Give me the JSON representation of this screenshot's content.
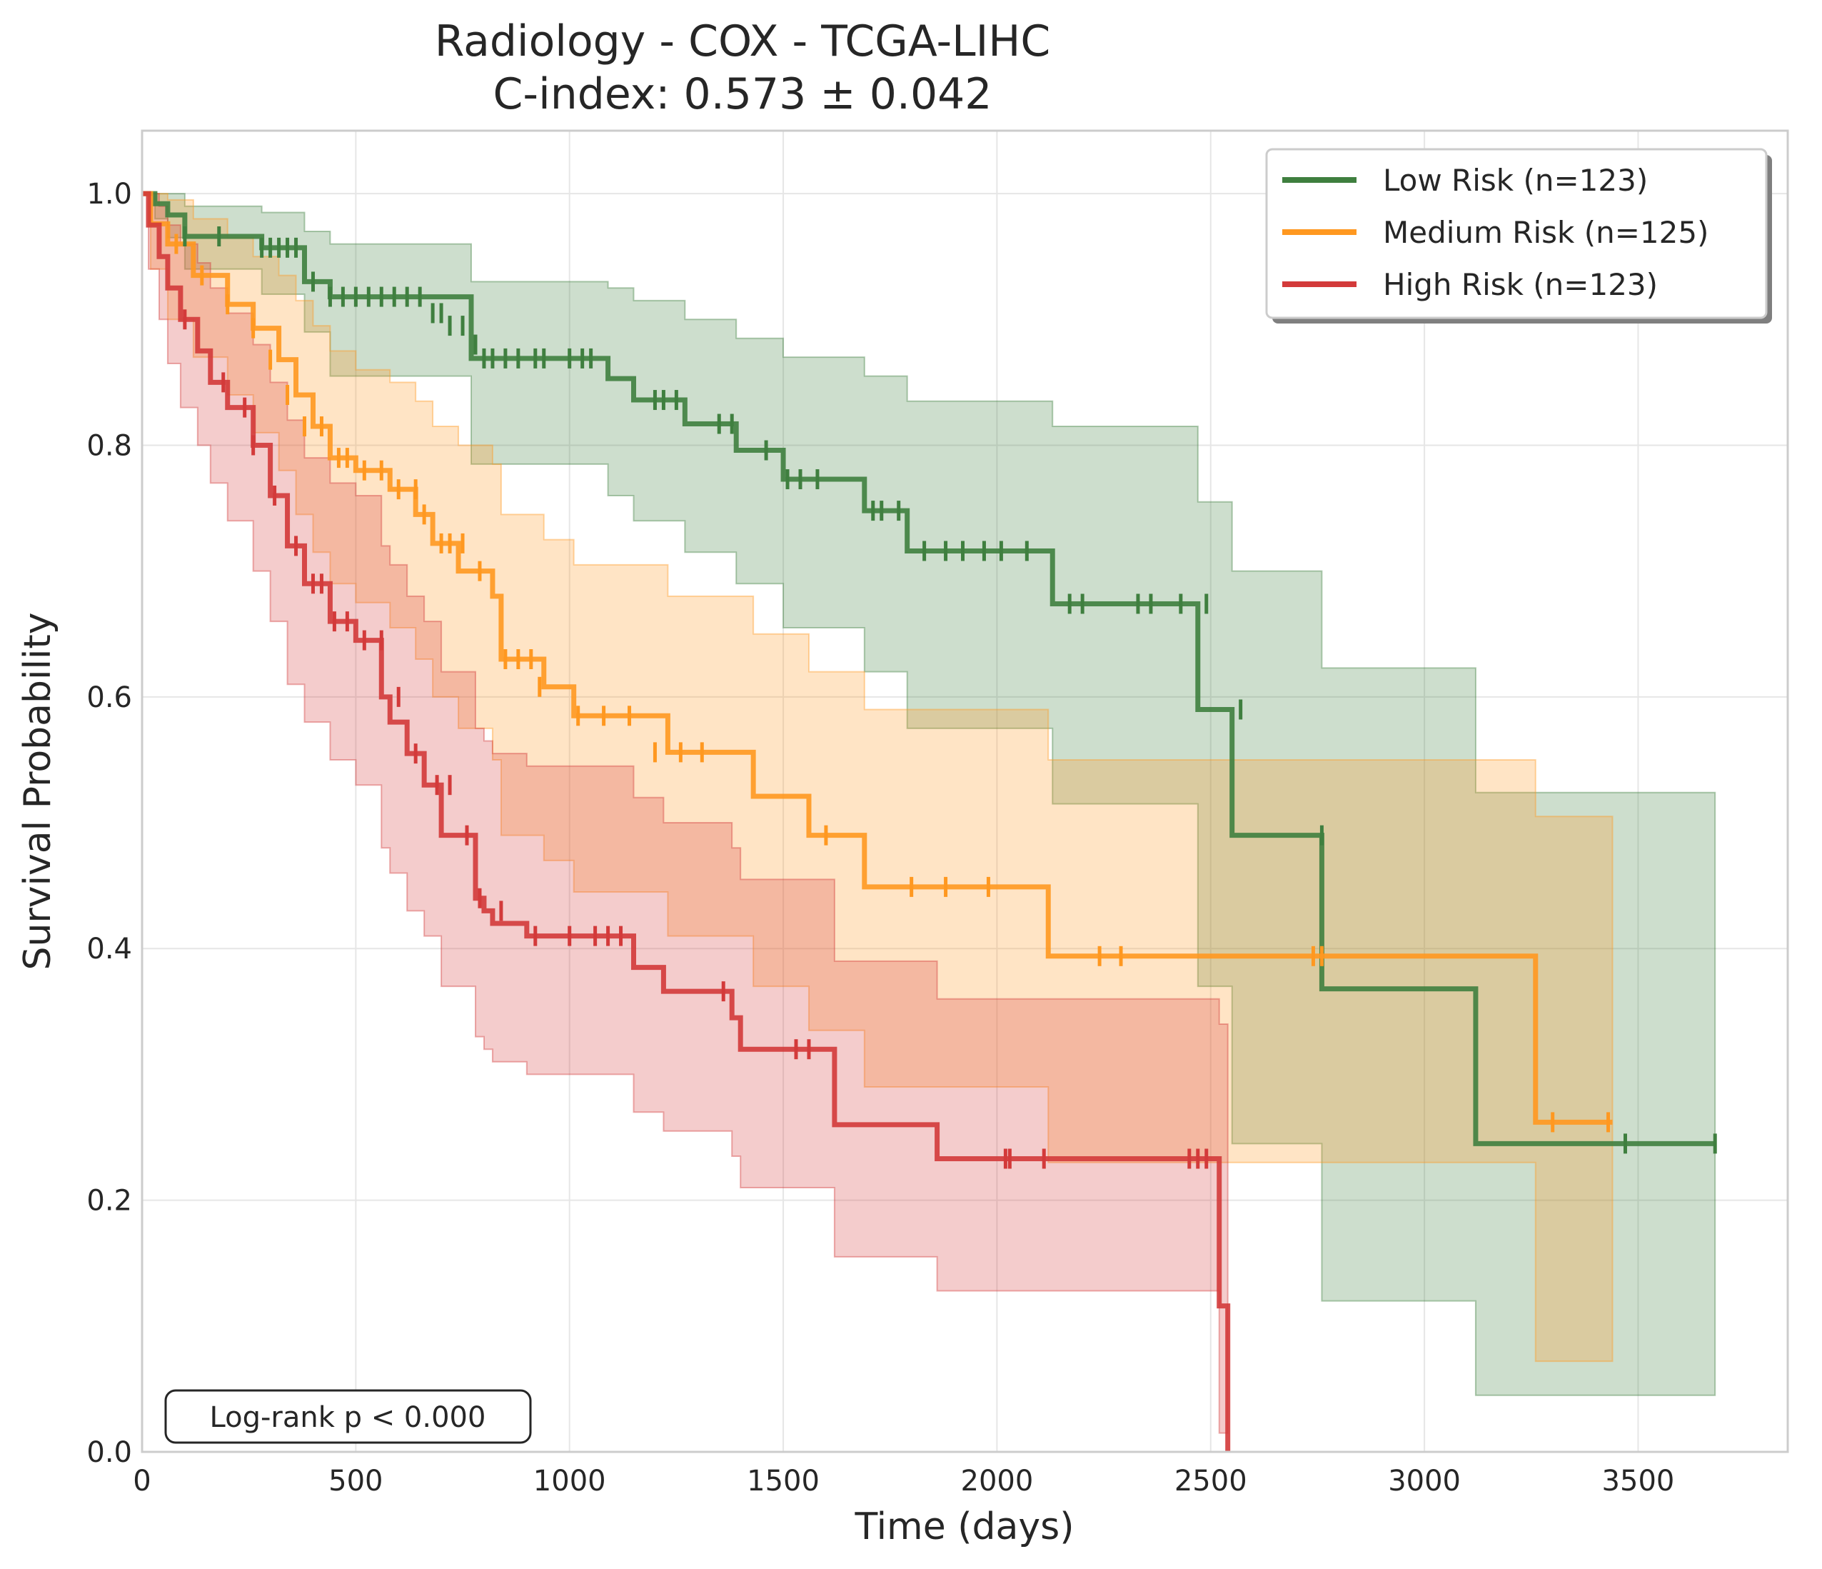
{
  "chart_data": {
    "type": "line",
    "title": "Radiology - COX - TCGA-LIHC",
    "subtitle": "C-index: 0.573 ± 0.042",
    "xlabel": "Time (days)",
    "ylabel": "Survival Probability",
    "xlim": [
      0,
      3850
    ],
    "ylim": [
      0,
      1.05
    ],
    "xticks": [
      0,
      500,
      1000,
      1500,
      2000,
      2500,
      3000,
      3500
    ],
    "xtick_labels": [
      "0",
      "500",
      "1000",
      "1500",
      "2000",
      "2500",
      "3000",
      "3500"
    ],
    "yticks": [
      0,
      0.2,
      0.4,
      0.6,
      0.8,
      1.0
    ],
    "ytick_labels": [
      "0.0",
      "0.2",
      "0.4",
      "0.6",
      "0.8",
      "1.0"
    ],
    "grid": true,
    "legend_position": "top-right",
    "annotation": "Log-rank p < 0.000",
    "series": [
      {
        "name": "Low Risk (n=123)",
        "color": "#3f7f3f",
        "x": [
          0,
          30,
          60,
          100,
          280,
          380,
          440,
          770,
          1090,
          1150,
          1270,
          1390,
          1500,
          1690,
          1790,
          2130,
          2470,
          2550,
          2760,
          3120,
          3680
        ],
        "y": [
          1.0,
          0.992,
          0.983,
          0.966,
          0.957,
          0.93,
          0.918,
          0.869,
          0.853,
          0.836,
          0.817,
          0.796,
          0.773,
          0.748,
          0.716,
          0.674,
          0.59,
          0.49,
          0.368,
          0.245,
          0.245
        ],
        "ci_lower": [
          1.0,
          0.98,
          0.965,
          0.94,
          0.92,
          0.89,
          0.855,
          0.785,
          0.76,
          0.74,
          0.715,
          0.69,
          0.655,
          0.62,
          0.575,
          0.515,
          0.37,
          0.245,
          0.12,
          0.045,
          0.045
        ],
        "ci_upper": [
          1.0,
          1.0,
          1.0,
          0.99,
          0.985,
          0.97,
          0.96,
          0.93,
          0.925,
          0.915,
          0.9,
          0.885,
          0.87,
          0.855,
          0.835,
          0.815,
          0.755,
          0.7,
          0.623,
          0.524,
          0.524
        ],
        "censor_x": [
          100,
          180,
          280,
          300,
          320,
          340,
          360,
          400,
          440,
          470,
          500,
          530,
          560,
          590,
          620,
          650,
          680,
          700,
          720,
          750,
          780,
          800,
          820,
          850,
          880,
          920,
          940,
          1000,
          1030,
          1050,
          1200,
          1220,
          1250,
          1350,
          1380,
          1460,
          1510,
          1540,
          1580,
          1710,
          1730,
          1770,
          1830,
          1880,
          1920,
          1970,
          2010,
          2070,
          2170,
          2200,
          2330,
          2360,
          2430,
          2490,
          2570,
          2760,
          3470,
          3680
        ],
        "censor_y": [
          0.966,
          0.966,
          0.957,
          0.957,
          0.957,
          0.957,
          0.957,
          0.93,
          0.918,
          0.918,
          0.918,
          0.918,
          0.918,
          0.918,
          0.918,
          0.918,
          0.905,
          0.905,
          0.895,
          0.895,
          0.88,
          0.869,
          0.869,
          0.869,
          0.869,
          0.869,
          0.869,
          0.869,
          0.869,
          0.869,
          0.836,
          0.836,
          0.836,
          0.817,
          0.817,
          0.796,
          0.773,
          0.773,
          0.773,
          0.748,
          0.748,
          0.748,
          0.716,
          0.716,
          0.716,
          0.716,
          0.716,
          0.716,
          0.674,
          0.674,
          0.674,
          0.674,
          0.674,
          0.674,
          0.59,
          0.49,
          0.245,
          0.245
        ]
      },
      {
        "name": "Medium Risk (n=125)",
        "color": "#ff9820",
        "x": [
          0,
          20,
          60,
          120,
          200,
          260,
          320,
          360,
          400,
          440,
          500,
          580,
          640,
          680,
          740,
          820,
          840,
          940,
          1010,
          1230,
          1430,
          1560,
          1690,
          2120,
          3260,
          3440
        ],
        "y": [
          1.0,
          0.976,
          0.96,
          0.935,
          0.912,
          0.893,
          0.868,
          0.84,
          0.815,
          0.79,
          0.78,
          0.765,
          0.745,
          0.722,
          0.7,
          0.68,
          0.63,
          0.608,
          0.585,
          0.556,
          0.521,
          0.49,
          0.449,
          0.394,
          0.262,
          0.262
        ],
        "ci_lower": [
          1.0,
          0.94,
          0.9,
          0.87,
          0.84,
          0.81,
          0.78,
          0.745,
          0.715,
          0.69,
          0.675,
          0.655,
          0.63,
          0.6,
          0.575,
          0.55,
          0.49,
          0.47,
          0.445,
          0.41,
          0.37,
          0.335,
          0.29,
          0.23,
          0.072,
          0.072
        ],
        "ci_upper": [
          1.0,
          1.0,
          0.995,
          0.98,
          0.965,
          0.95,
          0.935,
          0.915,
          0.895,
          0.875,
          0.86,
          0.85,
          0.835,
          0.815,
          0.8,
          0.785,
          0.745,
          0.725,
          0.705,
          0.68,
          0.65,
          0.62,
          0.59,
          0.55,
          0.505,
          0.505
        ],
        "censor_x": [
          80,
          140,
          200,
          260,
          300,
          340,
          380,
          420,
          460,
          480,
          520,
          560,
          600,
          640,
          660,
          700,
          720,
          750,
          790,
          850,
          880,
          910,
          930,
          1020,
          1080,
          1140,
          1200,
          1260,
          1310,
          1600,
          1800,
          1880,
          1980,
          2240,
          2290,
          2740,
          2760,
          3300,
          3430
        ],
        "censor_y": [
          0.96,
          0.935,
          0.912,
          0.893,
          0.868,
          0.84,
          0.815,
          0.815,
          0.79,
          0.79,
          0.78,
          0.78,
          0.765,
          0.765,
          0.745,
          0.722,
          0.722,
          0.722,
          0.7,
          0.63,
          0.63,
          0.63,
          0.608,
          0.585,
          0.585,
          0.585,
          0.556,
          0.556,
          0.556,
          0.49,
          0.449,
          0.449,
          0.449,
          0.394,
          0.394,
          0.394,
          0.394,
          0.262,
          0.262
        ]
      },
      {
        "name": "High Risk (n=123)",
        "color": "#d33a3a",
        "x": [
          0,
          15,
          40,
          60,
          90,
          130,
          160,
          200,
          260,
          300,
          340,
          380,
          440,
          500,
          560,
          580,
          620,
          660,
          700,
          780,
          800,
          820,
          900,
          1150,
          1220,
          1380,
          1400,
          1620,
          1860,
          2520,
          2540
        ],
        "y": [
          1.0,
          0.975,
          0.95,
          0.925,
          0.9,
          0.875,
          0.85,
          0.83,
          0.8,
          0.76,
          0.72,
          0.69,
          0.66,
          0.645,
          0.6,
          0.58,
          0.555,
          0.53,
          0.49,
          0.44,
          0.43,
          0.42,
          0.41,
          0.385,
          0.366,
          0.345,
          0.32,
          0.26,
          0.233,
          0.116,
          0.0
        ],
        "ci_lower": [
          1.0,
          0.94,
          0.9,
          0.865,
          0.83,
          0.8,
          0.77,
          0.74,
          0.7,
          0.66,
          0.61,
          0.58,
          0.55,
          0.53,
          0.48,
          0.46,
          0.43,
          0.41,
          0.37,
          0.33,
          0.32,
          0.31,
          0.3,
          0.27,
          0.255,
          0.235,
          0.21,
          0.155,
          0.128,
          0.015,
          0.015
        ],
        "ci_upper": [
          1.0,
          1.0,
          0.99,
          0.975,
          0.96,
          0.945,
          0.925,
          0.905,
          0.88,
          0.85,
          0.82,
          0.79,
          0.77,
          0.76,
          0.72,
          0.705,
          0.68,
          0.66,
          0.62,
          0.575,
          0.565,
          0.555,
          0.545,
          0.52,
          0.5,
          0.48,
          0.455,
          0.39,
          0.36,
          0.34,
          0.34
        ],
        "censor_x": [
          100,
          190,
          240,
          260,
          310,
          360,
          400,
          420,
          450,
          480,
          520,
          560,
          600,
          640,
          690,
          720,
          760,
          790,
          840,
          920,
          1000,
          1060,
          1090,
          1120,
          1360,
          1530,
          1560,
          2020,
          2030,
          2110,
          2450,
          2470,
          2490
        ],
        "censor_y": [
          0.9,
          0.85,
          0.83,
          0.8,
          0.76,
          0.72,
          0.69,
          0.69,
          0.66,
          0.66,
          0.645,
          0.645,
          0.6,
          0.555,
          0.53,
          0.53,
          0.49,
          0.44,
          0.43,
          0.41,
          0.41,
          0.41,
          0.41,
          0.41,
          0.366,
          0.32,
          0.32,
          0.233,
          0.233,
          0.233,
          0.233,
          0.233,
          0.233
        ]
      }
    ]
  }
}
